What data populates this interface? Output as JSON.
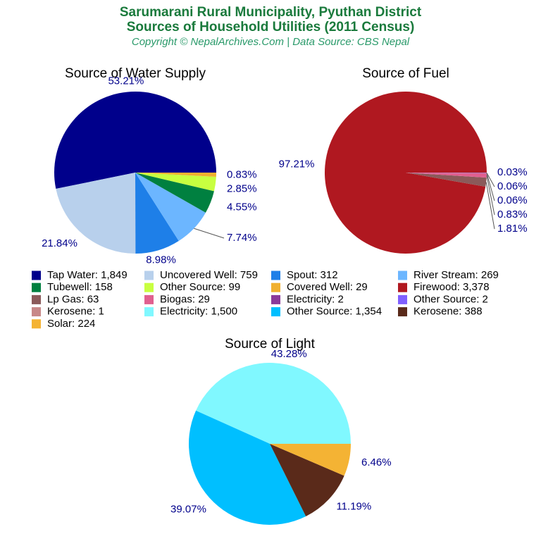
{
  "header": {
    "title": [
      "Sarumarani Rural Municipality, Pyuthan District",
      "Sources of Household Utilities (2011 Census)"
    ],
    "subtitle": "Copyright © NepalArchives.Com | Data Source: CBS Nepal"
  },
  "chart_data": [
    {
      "type": "pie",
      "title": "Source of Water Supply",
      "labels": [
        "Tap Water: 1,849",
        "Uncovered Well: 759",
        "Spout: 312",
        "River Stream: 269",
        "Tubewell: 158",
        "Other Source: 99",
        "Covered Well: 29"
      ],
      "values": [
        53.21,
        21.84,
        8.98,
        7.74,
        4.55,
        2.85,
        0.83
      ],
      "value_labels": [
        "53.21%",
        "21.84%",
        "8.98%",
        "7.74%",
        "4.55%",
        "2.85%",
        "0.83%"
      ],
      "colors": [
        "#00008b",
        "#b8d0ec",
        "#1e7fe8",
        "#6cb6ff",
        "#008040",
        "#c8ff40",
        "#f0b030"
      ]
    },
    {
      "type": "pie",
      "title": "Source of Fuel",
      "labels": [
        "Firewood: 3,378",
        "Lp Gas: 63",
        "Biogas: 29",
        "Electricity: 2",
        "Other Source: 2",
        "Kerosene: 1"
      ],
      "values": [
        97.21,
        1.81,
        0.83,
        0.06,
        0.06,
        0.03
      ],
      "value_labels": [
        "97.21%",
        "1.81%",
        "0.83%",
        "0.06%",
        "0.06%",
        "0.03%"
      ],
      "colors": [
        "#b01820",
        "#8b5a5a",
        "#e06090",
        "#8b3a9a",
        "#8060ff",
        "#c88888"
      ]
    },
    {
      "type": "pie",
      "title": "Source of Light",
      "labels": [
        "Electricity: 1,500",
        "Other Source: 1,354",
        "Kerosene: 388",
        "Solar: 224"
      ],
      "values": [
        43.28,
        39.07,
        11.19,
        6.46
      ],
      "value_labels": [
        "43.28%",
        "39.07%",
        "11.19%",
        "6.46%"
      ],
      "colors": [
        "#80f8ff",
        "#00bfff",
        "#5a2a1a",
        "#f4b334"
      ]
    }
  ]
}
